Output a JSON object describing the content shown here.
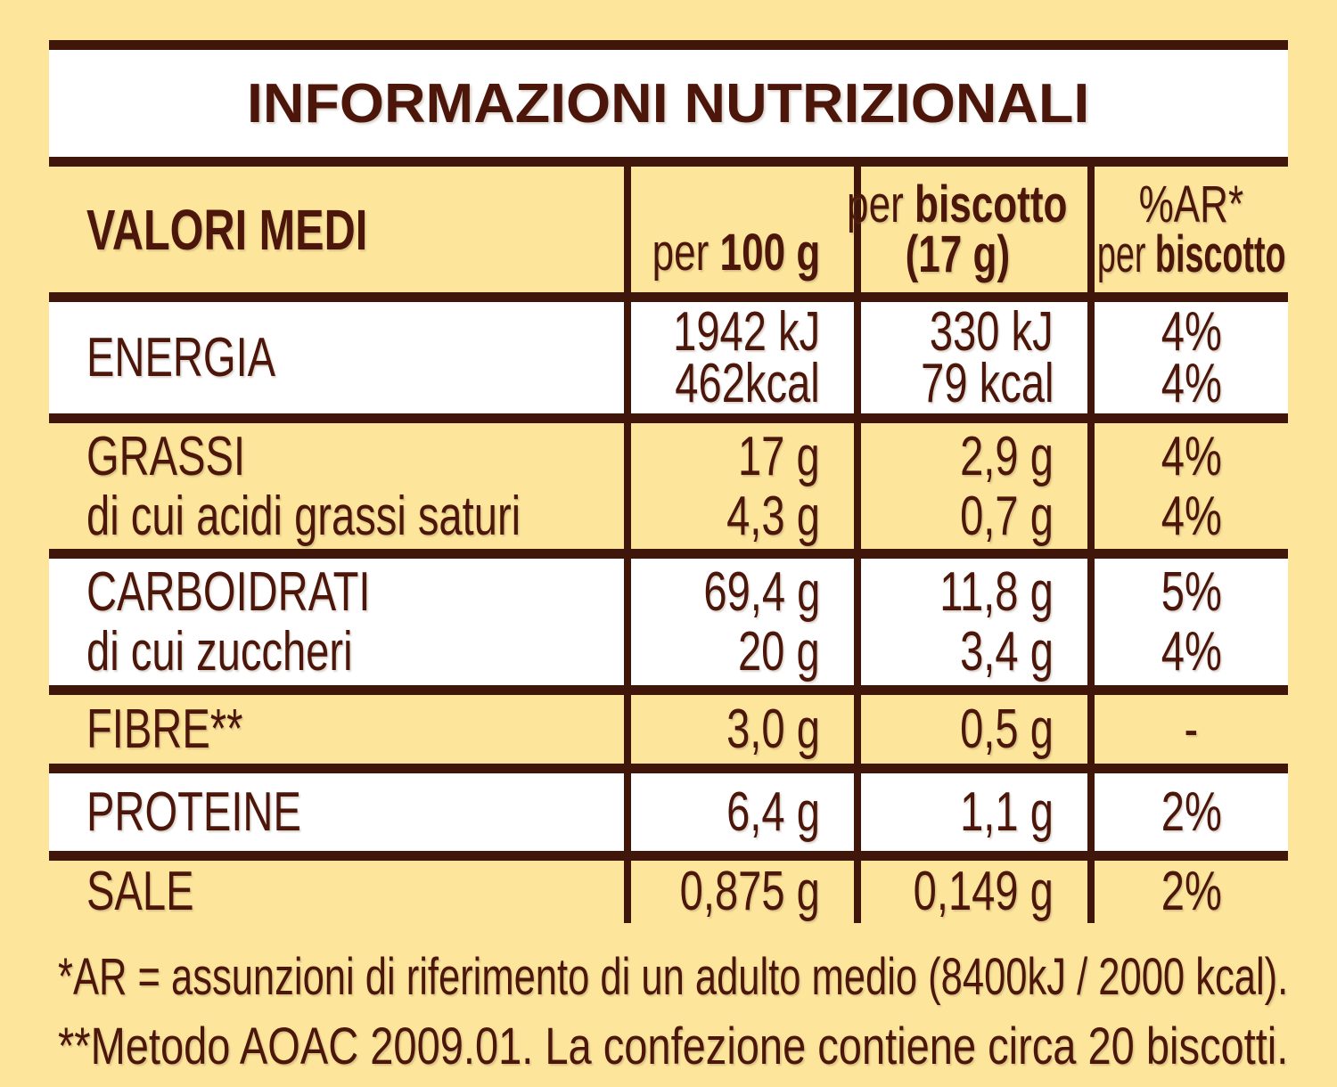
{
  "title": "INFORMAZIONI NUTRIZIONALI",
  "colors": {
    "background": "#FDE69C",
    "row_white": "#FFFFFF",
    "border_brown": "#3F1609",
    "text_brown": "#4C160A"
  },
  "table": {
    "header": {
      "col1": "VALORI MEDI",
      "col2": {
        "prefix": "per ",
        "bold": "100 g"
      },
      "col3": {
        "line1_prefix": "per ",
        "line1_bold": "biscotto",
        "line2_bold": "(17 g)"
      },
      "col4": {
        "line1": "%AR*",
        "line2_prefix": "per ",
        "line2_bold": "biscotto"
      }
    },
    "rows": [
      {
        "name": "energia",
        "bg": "white",
        "labels": [
          "ENERGIA"
        ],
        "per100": [
          "1942 kJ",
          "462kcal"
        ],
        "perbiscotto": [
          "330 kJ",
          "79 kcal"
        ],
        "ar": [
          "4%",
          "4%"
        ]
      },
      {
        "name": "grassi",
        "bg": "yellow",
        "labels": [
          "GRASSI",
          "di cui acidi grassi saturi"
        ],
        "per100": [
          "17 g",
          "4,3 g"
        ],
        "perbiscotto": [
          "2,9 g",
          "0,7 g"
        ],
        "ar": [
          "4%",
          "4%"
        ]
      },
      {
        "name": "carboidrati",
        "bg": "white",
        "labels": [
          "CARBOIDRATI",
          "di cui zuccheri"
        ],
        "per100": [
          "69,4 g",
          "20 g"
        ],
        "perbiscotto": [
          "11,8 g",
          "3,4 g"
        ],
        "ar": [
          "5%",
          "4%"
        ]
      },
      {
        "name": "fibre",
        "bg": "yellow",
        "labels": [
          "FIBRE**"
        ],
        "per100": [
          "3,0 g"
        ],
        "perbiscotto": [
          "0,5 g"
        ],
        "ar": [
          "-"
        ]
      },
      {
        "name": "proteine",
        "bg": "white",
        "labels": [
          "PROTEINE"
        ],
        "per100": [
          "6,4 g"
        ],
        "perbiscotto": [
          "1,1 g"
        ],
        "ar": [
          "2%"
        ]
      },
      {
        "name": "sale",
        "bg": "yellow",
        "labels": [
          "SALE"
        ],
        "per100": [
          "0,875 g"
        ],
        "perbiscotto": [
          "0,149 g"
        ],
        "ar": [
          "2%"
        ]
      }
    ]
  },
  "footnotes": [
    "*AR = assunzioni di riferimento di un adulto medio (8400kJ / 2000 kcal).",
    "**Metodo AOAC 2009.01. La confezione contiene circa 20 biscotti."
  ]
}
